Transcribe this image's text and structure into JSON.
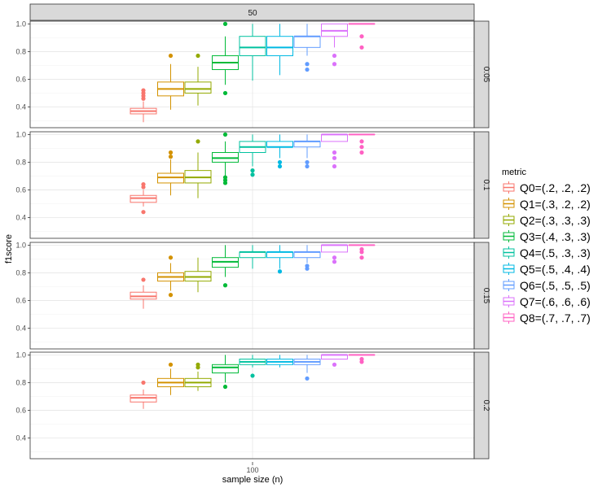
{
  "chart_data": {
    "type": "boxplot",
    "xlabel": "sample size (n)",
    "ylabel": "f1score",
    "x_tick": "100",
    "column_facet": "50",
    "legend_title": "metric",
    "ylim": [
      0.25,
      1.02
    ],
    "y_ticks": [
      0.4,
      0.6,
      0.8,
      1.0
    ],
    "y_tick_labels": [
      "0.4",
      "0.6",
      "0.8",
      "1.0"
    ],
    "grid": true,
    "legend_position": "right",
    "series": [
      {
        "name": "Q0=(.2, .2, .2)",
        "color": "#F8766D"
      },
      {
        "name": "Q1=(.3, .2, .2)",
        "color": "#D39200"
      },
      {
        "name": "Q2=(.3, .3, .3)",
        "color": "#93AA00"
      },
      {
        "name": "Q3=(.4, .3, .3)",
        "color": "#00BA38"
      },
      {
        "name": "Q4=(.5, .3, .3)",
        "color": "#00C19F"
      },
      {
        "name": "Q5=(.5, .4, .4)",
        "color": "#00B9E3"
      },
      {
        "name": "Q6=(.5, .5, .5)",
        "color": "#619CFF"
      },
      {
        "name": "Q7=(.6, .6, .6)",
        "color": "#DB72FB"
      },
      {
        "name": "Q8=(.7, .7, .7)",
        "color": "#FF61C3"
      }
    ],
    "panels": [
      {
        "label": "0.05",
        "boxes": [
          {
            "whislo": 0.29,
            "q1": 0.35,
            "med": 0.37,
            "q3": 0.39,
            "whishi": 0.44,
            "outliers": [
              0.46,
              0.48,
              0.5,
              0.52
            ]
          },
          {
            "whislo": 0.38,
            "q1": 0.48,
            "med": 0.53,
            "q3": 0.58,
            "whishi": 0.71,
            "outliers": [
              0.77
            ]
          },
          {
            "whislo": 0.41,
            "q1": 0.5,
            "med": 0.53,
            "q3": 0.58,
            "whishi": 0.69,
            "outliers": [
              0.77
            ]
          },
          {
            "whislo": 0.56,
            "q1": 0.67,
            "med": 0.72,
            "q3": 0.77,
            "whishi": 0.91,
            "outliers": [
              0.5,
              1.0
            ]
          },
          {
            "whislo": 0.59,
            "q1": 0.77,
            "med": 0.83,
            "q3": 0.91,
            "whishi": 1.0,
            "outliers": []
          },
          {
            "whislo": 0.63,
            "q1": 0.77,
            "med": 0.83,
            "q3": 0.91,
            "whishi": 1.0,
            "outliers": []
          },
          {
            "whislo": 0.77,
            "q1": 0.83,
            "med": 0.91,
            "q3": 0.91,
            "whishi": 1.0,
            "outliers": [
              0.67,
              0.71
            ]
          },
          {
            "whislo": 0.83,
            "q1": 0.91,
            "med": 0.95,
            "q3": 1.0,
            "whishi": 1.0,
            "outliers": [
              0.71,
              0.77
            ]
          },
          {
            "whislo": 1.0,
            "q1": 1.0,
            "med": 1.0,
            "q3": 1.0,
            "whishi": 1.0,
            "outliers": [
              0.83,
              0.91
            ]
          }
        ]
      },
      {
        "label": "0.1",
        "boxes": [
          {
            "whislo": 0.48,
            "q1": 0.51,
            "med": 0.54,
            "q3": 0.56,
            "whishi": 0.6,
            "outliers": [
              0.44,
              0.62,
              0.64
            ]
          },
          {
            "whislo": 0.56,
            "q1": 0.65,
            "med": 0.69,
            "q3": 0.72,
            "whishi": 0.82,
            "outliers": [
              0.84,
              0.87
            ]
          },
          {
            "whislo": 0.54,
            "q1": 0.65,
            "med": 0.69,
            "q3": 0.74,
            "whishi": 0.87,
            "outliers": [
              0.95
            ]
          },
          {
            "whislo": 0.7,
            "q1": 0.8,
            "med": 0.83,
            "q3": 0.87,
            "whishi": 0.95,
            "outliers": [
              0.65,
              0.67,
              0.69,
              1.0
            ]
          },
          {
            "whislo": 0.77,
            "q1": 0.87,
            "med": 0.91,
            "q3": 0.95,
            "whishi": 1.0,
            "outliers": [
              0.71,
              0.74
            ]
          },
          {
            "whislo": 0.83,
            "q1": 0.91,
            "med": 0.91,
            "q3": 0.95,
            "whishi": 1.0,
            "outliers": [
              0.77,
              0.8
            ]
          },
          {
            "whislo": 0.83,
            "q1": 0.91,
            "med": 0.95,
            "q3": 0.95,
            "whishi": 1.0,
            "outliers": [
              0.77,
              0.8
            ]
          },
          {
            "whislo": 0.95,
            "q1": 0.95,
            "med": 1.0,
            "q3": 1.0,
            "whishi": 1.0,
            "outliers": [
              0.77,
              0.83,
              0.87
            ]
          },
          {
            "whislo": 1.0,
            "q1": 1.0,
            "med": 1.0,
            "q3": 1.0,
            "whishi": 1.0,
            "outliers": [
              0.87,
              0.91,
              0.95
            ]
          }
        ]
      },
      {
        "label": "0.15",
        "boxes": [
          {
            "whislo": 0.54,
            "q1": 0.61,
            "med": 0.63,
            "q3": 0.66,
            "whishi": 0.71,
            "outliers": [
              0.75
            ]
          },
          {
            "whislo": 0.67,
            "q1": 0.74,
            "med": 0.77,
            "q3": 0.8,
            "whishi": 0.87,
            "outliers": [
              0.64,
              0.91
            ]
          },
          {
            "whislo": 0.66,
            "q1": 0.74,
            "med": 0.77,
            "q3": 0.81,
            "whishi": 0.91,
            "outliers": []
          },
          {
            "whislo": 0.77,
            "q1": 0.84,
            "med": 0.88,
            "q3": 0.91,
            "whishi": 1.0,
            "outliers": [
              0.71
            ]
          },
          {
            "whislo": 0.83,
            "q1": 0.91,
            "med": 0.95,
            "q3": 0.95,
            "whishi": 1.0,
            "outliers": []
          },
          {
            "whislo": 0.83,
            "q1": 0.91,
            "med": 0.95,
            "q3": 0.95,
            "whishi": 1.0,
            "outliers": [
              0.81
            ]
          },
          {
            "whislo": 0.87,
            "q1": 0.91,
            "med": 0.95,
            "q3": 0.95,
            "whishi": 1.0,
            "outliers": [
              0.83,
              0.85
            ]
          },
          {
            "whislo": 0.95,
            "q1": 0.95,
            "med": 1.0,
            "q3": 1.0,
            "whishi": 1.0,
            "outliers": [
              0.88,
              0.91
            ]
          },
          {
            "whislo": 1.0,
            "q1": 1.0,
            "med": 1.0,
            "q3": 1.0,
            "whishi": 1.0,
            "outliers": [
              0.91,
              0.95,
              0.97
            ]
          }
        ]
      },
      {
        "label": "0.2",
        "boxes": [
          {
            "whislo": 0.61,
            "q1": 0.66,
            "med": 0.69,
            "q3": 0.71,
            "whishi": 0.75,
            "outliers": [
              0.8
            ]
          },
          {
            "whislo": 0.71,
            "q1": 0.77,
            "med": 0.8,
            "q3": 0.83,
            "whishi": 0.9,
            "outliers": [
              0.93
            ]
          },
          {
            "whislo": 0.74,
            "q1": 0.77,
            "med": 0.8,
            "q3": 0.83,
            "whishi": 0.88,
            "outliers": [
              0.91,
              0.93
            ]
          },
          {
            "whislo": 0.8,
            "q1": 0.87,
            "med": 0.91,
            "q3": 0.93,
            "whishi": 1.0,
            "outliers": [
              0.77
            ]
          },
          {
            "whislo": 0.91,
            "q1": 0.93,
            "med": 0.95,
            "q3": 0.97,
            "whishi": 1.0,
            "outliers": [
              0.85
            ]
          },
          {
            "whislo": 0.91,
            "q1": 0.93,
            "med": 0.95,
            "q3": 0.97,
            "whishi": 1.0,
            "outliers": []
          },
          {
            "whislo": 0.87,
            "q1": 0.93,
            "med": 0.95,
            "q3": 0.97,
            "whishi": 1.0,
            "outliers": [
              0.83
            ]
          },
          {
            "whislo": 0.97,
            "q1": 0.97,
            "med": 1.0,
            "q3": 1.0,
            "whishi": 1.0,
            "outliers": [
              0.93
            ]
          },
          {
            "whislo": 1.0,
            "q1": 1.0,
            "med": 1.0,
            "q3": 1.0,
            "whishi": 1.0,
            "outliers": [
              0.95,
              0.97
            ]
          }
        ]
      }
    ]
  }
}
